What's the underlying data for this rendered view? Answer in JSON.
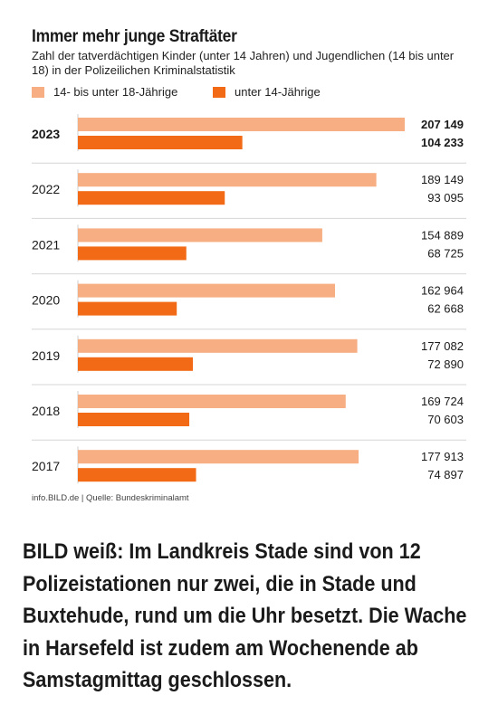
{
  "chart_data": {
    "type": "bar",
    "orientation": "horizontal",
    "title": "Immer mehr junge Straftäter",
    "subtitle": "Zahl der tatverdächtigen Kinder (unter 14 Jahren) und Jugendlichen (14 bis unter 18) in der Polizeilichen Kriminalstatistik",
    "categories": [
      "2023",
      "2022",
      "2021",
      "2020",
      "2019",
      "2018",
      "2017"
    ],
    "series": [
      {
        "name": "14- bis unter 18-Jährige",
        "color": "#f7ae82",
        "values": [
          207149,
          189149,
          154889,
          162964,
          177082,
          169724,
          177913
        ],
        "labels": [
          "207 149",
          "189 149",
          "154 889",
          "162 964",
          "177 082",
          "169 724",
          "177 913"
        ]
      },
      {
        "name": "unter 14-Jährige",
        "color": "#f26a15",
        "values": [
          104233,
          93095,
          68725,
          62668,
          72890,
          70603,
          74897
        ],
        "labels": [
          "104 233",
          "93 095",
          "68 725",
          "62 668",
          "72 890",
          "70 603",
          "74 897"
        ]
      }
    ],
    "highlight_category": "2023",
    "xlim": [
      0,
      207149
    ],
    "legend_position": "top",
    "source": "info.BILD.de | Quelle: Bundeskriminalamt"
  },
  "article": {
    "text": "BILD weiß: Im Landkreis Stade sind von 12 Polizeistationen nur zwei, die in Stade und Buxtehude, rund um die Uhr besetzt. Die Wache in Harsefeld ist zudem am Wochenende ab Samstagmittag geschlossen."
  }
}
